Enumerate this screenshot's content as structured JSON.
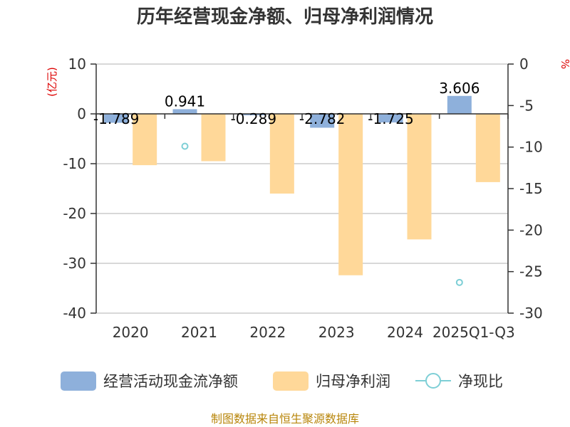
{
  "title": "历年经营现金净额、归母净利润情况",
  "source_text": "制图数据来自恒生聚源数据库",
  "chart_data": {
    "type": "bar",
    "title": "历年经营现金净额、归母净利润情况",
    "categories": [
      "2020",
      "2021",
      "2022",
      "2023",
      "2024",
      "2025Q1-Q3"
    ],
    "left_axis": {
      "unit": "(亿元)",
      "ylim": [
        -40,
        10
      ],
      "ticks": [
        10,
        0,
        -10,
        -20,
        -30,
        -40
      ]
    },
    "right_axis": {
      "unit": "%",
      "ylim": [
        -30,
        0
      ],
      "ticks": [
        0,
        -5,
        -10,
        -15,
        -20,
        -25,
        -30
      ]
    },
    "series": [
      {
        "name": "经营活动现金流净额",
        "axis": "left",
        "kind": "bar",
        "color": "#8eb0db",
        "values": [
          -1.789,
          0.941,
          -0.289,
          -2.782,
          -1.725,
          3.606
        ],
        "labels": [
          "-1.789",
          "0.941",
          "-0.289",
          "-2.782",
          "-1.725",
          "3.606"
        ]
      },
      {
        "name": "归母净利润",
        "axis": "left",
        "kind": "bar",
        "color": "#ffd899",
        "values": [
          -10.3,
          -9.5,
          -16.0,
          -32.4,
          -25.2,
          -13.7
        ]
      },
      {
        "name": "净现比",
        "axis": "right",
        "kind": "scatter",
        "color": "#7ecfd6",
        "values": [
          null,
          -9.9,
          null,
          null,
          null,
          -26.3
        ]
      }
    ],
    "grid": true,
    "legend_position": "bottom"
  }
}
